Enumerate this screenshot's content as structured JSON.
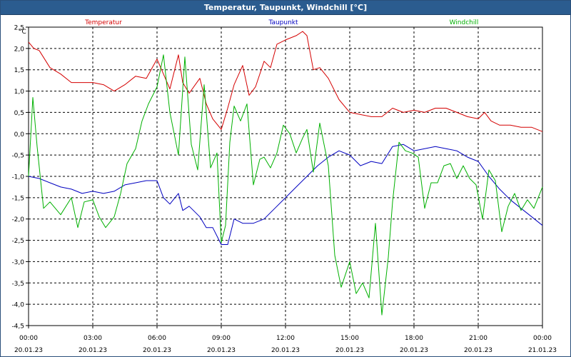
{
  "window": {
    "title": "Temperatur, Taupunkt, Windchill [°C]"
  },
  "chart_data": {
    "type": "line",
    "title": "Temperatur, Taupunkt, Windchill [°C]",
    "ylabel": "°C",
    "xlabel": "",
    "ylim": [
      -4.5,
      2.5
    ],
    "xlim": [
      0,
      24
    ],
    "grid": true,
    "legend_position": "top",
    "y_ticks": [
      "2,5",
      "2,0",
      "1,5",
      "1,0",
      "0,5",
      "0,0",
      "-0,5",
      "-1,0",
      "-1,5",
      "-2,0",
      "-2,5",
      "-3,0",
      "-3,5",
      "-4,0",
      "-4,5"
    ],
    "x_ticks": [
      {
        "time": "00:00",
        "date": "20.01.23"
      },
      {
        "time": "03:00",
        "date": "20.01.23"
      },
      {
        "time": "06:00",
        "date": "20.01.23"
      },
      {
        "time": "09:00",
        "date": "20.01.23"
      },
      {
        "time": "12:00",
        "date": "20.01.23"
      },
      {
        "time": "15:00",
        "date": "20.01.23"
      },
      {
        "time": "18:00",
        "date": "20.01.23"
      },
      {
        "time": "21:00",
        "date": "20.01.23"
      },
      {
        "time": "00:00",
        "date": "21.01.23"
      }
    ],
    "series": [
      {
        "name": "Temperatur",
        "color": "#d40000",
        "x": [
          0,
          0.25,
          0.5,
          1,
          1.5,
          2,
          2.5,
          3,
          3.5,
          4,
          4.5,
          5,
          5.5,
          6,
          6.3,
          6.6,
          7,
          7.2,
          7.5,
          8,
          8.3,
          8.6,
          9,
          9.3,
          9.6,
          10,
          10.3,
          10.6,
          11,
          11.3,
          11.6,
          12,
          12.5,
          12.8,
          13,
          13.3,
          13.6,
          14,
          14.5,
          15,
          15.5,
          16,
          16.5,
          17,
          17.5,
          18,
          18.5,
          19,
          19.5,
          20,
          20.5,
          21,
          21.3,
          21.6,
          22,
          22.5,
          23,
          23.5,
          24
        ],
        "values": [
          2.15,
          2.0,
          1.95,
          1.55,
          1.4,
          1.2,
          1.2,
          1.2,
          1.15,
          1.0,
          1.15,
          1.35,
          1.3,
          1.75,
          1.4,
          1.05,
          1.85,
          1.2,
          0.95,
          1.3,
          0.7,
          0.35,
          0.1,
          0.6,
          1.15,
          1.6,
          0.9,
          1.1,
          1.7,
          1.55,
          2.1,
          2.2,
          2.3,
          2.4,
          2.3,
          1.5,
          1.55,
          1.3,
          0.8,
          0.5,
          0.45,
          0.4,
          0.4,
          0.6,
          0.5,
          0.55,
          0.5,
          0.6,
          0.6,
          0.5,
          0.4,
          0.35,
          0.5,
          0.3,
          0.2,
          0.2,
          0.15,
          0.15,
          0.05
        ]
      },
      {
        "name": "Taupunkt",
        "color": "#0000c0",
        "x": [
          0,
          0.5,
          1,
          1.5,
          2,
          2.5,
          3,
          3.5,
          4,
          4.5,
          5,
          5.5,
          6,
          6.3,
          6.6,
          7,
          7.2,
          7.5,
          8,
          8.3,
          8.6,
          9,
          9.3,
          9.6,
          10,
          10.5,
          11,
          11.5,
          12,
          12.5,
          13,
          13.5,
          14,
          14.5,
          15,
          15.5,
          16,
          16.5,
          17,
          17.5,
          18,
          18.5,
          19,
          19.5,
          20,
          20.5,
          21,
          21.5,
          22,
          22.5,
          23,
          23.5,
          24
        ],
        "values": [
          -1.0,
          -1.05,
          -1.15,
          -1.25,
          -1.3,
          -1.4,
          -1.35,
          -1.4,
          -1.35,
          -1.2,
          -1.15,
          -1.1,
          -1.1,
          -1.5,
          -1.65,
          -1.4,
          -1.8,
          -1.7,
          -1.95,
          -2.2,
          -2.2,
          -2.6,
          -2.6,
          -2.0,
          -2.1,
          -2.1,
          -2.0,
          -1.75,
          -1.5,
          -1.25,
          -1.0,
          -0.75,
          -0.55,
          -0.4,
          -0.5,
          -0.75,
          -0.65,
          -0.7,
          -0.3,
          -0.25,
          -0.4,
          -0.35,
          -0.3,
          -0.35,
          -0.4,
          -0.55,
          -0.65,
          -1.0,
          -1.3,
          -1.55,
          -1.75,
          -1.95,
          -2.15
        ]
      },
      {
        "name": "Windchill",
        "color": "#00b000",
        "x": [
          0,
          0.2,
          0.4,
          0.7,
          1,
          1.5,
          2,
          2.3,
          2.6,
          3,
          3.3,
          3.6,
          4,
          4.3,
          4.6,
          5,
          5.3,
          5.6,
          6,
          6.3,
          6.6,
          6.9,
          7,
          7.3,
          7.6,
          7.9,
          8.2,
          8.5,
          8.8,
          9,
          9.2,
          9.4,
          9.6,
          9.9,
          10.2,
          10.5,
          10.8,
          11,
          11.3,
          11.6,
          11.9,
          12.2,
          12.5,
          12.8,
          13,
          13.3,
          13.6,
          14,
          14.3,
          14.6,
          15,
          15.3,
          15.6,
          15.9,
          16.2,
          16.5,
          16.8,
          17,
          17.3,
          17.6,
          17.9,
          18.2,
          18.5,
          18.8,
          19.1,
          19.4,
          19.7,
          20,
          20.3,
          20.6,
          20.9,
          21.2,
          21.5,
          21.8,
          22.1,
          22.4,
          22.7,
          23,
          23.3,
          23.6,
          24
        ],
        "values": [
          -1.0,
          0.85,
          -0.3,
          -1.75,
          -1.6,
          -1.9,
          -1.5,
          -2.2,
          -1.6,
          -1.55,
          -1.95,
          -2.2,
          -1.95,
          -1.4,
          -0.7,
          -0.35,
          0.3,
          0.7,
          1.1,
          1.85,
          0.5,
          -0.25,
          -0.5,
          1.8,
          -0.25,
          -0.85,
          1.15,
          -0.8,
          -0.45,
          -2.55,
          -2.15,
          -0.2,
          0.65,
          0.3,
          0.7,
          -1.2,
          -0.6,
          -0.55,
          -0.8,
          -0.45,
          0.2,
          0.0,
          -0.45,
          -0.1,
          0.1,
          -0.9,
          0.25,
          -0.75,
          -2.85,
          -3.6,
          -3.0,
          -3.75,
          -3.5,
          -3.85,
          -2.1,
          -4.25,
          -2.9,
          -1.6,
          -0.2,
          -0.4,
          -0.45,
          -0.55,
          -1.75,
          -1.15,
          -1.15,
          -0.75,
          -0.7,
          -1.05,
          -0.75,
          -1.05,
          -1.2,
          -2.0,
          -0.85,
          -1.1,
          -2.3,
          -1.7,
          -1.4,
          -1.8,
          -1.55,
          -1.75,
          -1.25
        ]
      }
    ]
  }
}
